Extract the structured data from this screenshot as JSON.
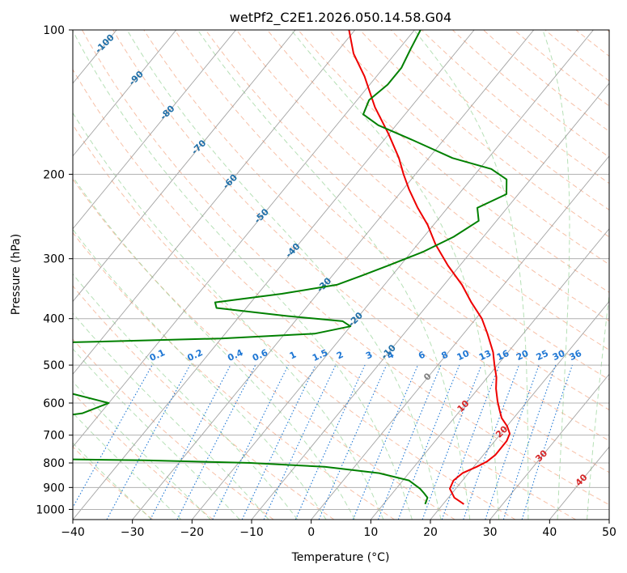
{
  "chart_data": {
    "type": "line",
    "title": "wetPf2_C2E1.2026.050.14.58.G04",
    "xlabel": "Temperature (°C)",
    "ylabel": "Pressure (hPa)",
    "xlim": [
      -40,
      50
    ],
    "ylim": [
      1050,
      100
    ],
    "y_scale": "log",
    "skew": true,
    "grid": true,
    "x_ticks": [
      -40,
      -30,
      -20,
      -10,
      0,
      10,
      20,
      30,
      40,
      50
    ],
    "y_ticks": [
      100,
      200,
      300,
      400,
      500,
      600,
      700,
      800,
      900,
      1000
    ],
    "series": [
      {
        "key": "temperature",
        "color": "#ee0000",
        "points": [
          [
            23.5,
            975
          ],
          [
            21,
            945
          ],
          [
            19,
            905
          ],
          [
            18.5,
            870
          ],
          [
            19,
            840
          ],
          [
            20.5,
            815
          ],
          [
            21.5,
            795
          ],
          [
            22,
            770
          ],
          [
            22,
            745
          ],
          [
            22,
            720
          ],
          [
            21.5,
            695
          ],
          [
            20,
            670
          ],
          [
            18,
            645
          ],
          [
            16.5,
            620
          ],
          [
            15,
            595
          ],
          [
            13,
            560
          ],
          [
            11.5,
            530
          ],
          [
            9.5,
            500
          ],
          [
            7.5,
            470
          ],
          [
            4,
            430
          ],
          [
            1,
            400
          ],
          [
            -3,
            370
          ],
          [
            -7,
            340
          ],
          [
            -12,
            310
          ],
          [
            -17,
            280
          ],
          [
            -21,
            255
          ],
          [
            -25,
            235
          ],
          [
            -29,
            215
          ],
          [
            -32,
            200
          ],
          [
            -35,
            185
          ],
          [
            -40,
            165
          ],
          [
            -46,
            145
          ],
          [
            -52,
            125
          ],
          [
            -57,
            112
          ],
          [
            -61,
            100
          ]
        ]
      },
      {
        "key": "dewpoint",
        "color": "#008000",
        "points": [
          [
            17,
            975
          ],
          [
            16.5,
            945
          ],
          [
            15.3,
            925
          ],
          [
            14,
            905
          ],
          [
            11,
            870
          ],
          [
            5,
            840
          ],
          [
            -5,
            815
          ],
          [
            -18,
            800
          ],
          [
            -36,
            790
          ],
          [
            -52,
            785
          ],
          [
            -60,
            780
          ],
          [
            -62,
            770
          ],
          [
            -63,
            760
          ],
          [
            -62,
            740
          ],
          [
            -65,
            725
          ],
          [
            -70,
            710
          ],
          [
            -80,
            700
          ],
          [
            -85,
            695
          ],
          [
            -80,
            690
          ],
          [
            -74,
            685
          ],
          [
            -73,
            670
          ],
          [
            -68,
            660
          ],
          [
            -60,
            650
          ],
          [
            -53,
            630
          ],
          [
            -50,
            600
          ],
          [
            -57,
            575
          ],
          [
            -68,
            545
          ],
          [
            -76,
            530
          ],
          [
            -73,
            510
          ],
          [
            -73,
            490
          ],
          [
            -78,
            470
          ],
          [
            -90,
            455
          ],
          [
            -70,
            450
          ],
          [
            -40,
            440
          ],
          [
            -25,
            430
          ],
          [
            -20,
            415
          ],
          [
            -22,
            405
          ],
          [
            -32,
            395
          ],
          [
            -45,
            380
          ],
          [
            -46,
            370
          ],
          [
            -36,
            355
          ],
          [
            -28,
            340
          ],
          [
            -25,
            325
          ],
          [
            -22,
            310
          ],
          [
            -18,
            290
          ],
          [
            -15,
            270
          ],
          [
            -13,
            250
          ],
          [
            -15,
            235
          ],
          [
            -12,
            220
          ],
          [
            -14,
            205
          ],
          [
            -18,
            195
          ],
          [
            -26,
            185
          ],
          [
            -35,
            170
          ],
          [
            -43,
            158
          ],
          [
            -47,
            150
          ],
          [
            -48,
            140
          ],
          [
            -47,
            130
          ],
          [
            -47,
            120
          ],
          [
            -48,
            110
          ],
          [
            -49,
            100
          ]
        ]
      }
    ],
    "mixing_ratio_labels": [
      "0.1",
      "0.2",
      "0.4",
      "0.6",
      "1",
      "1.5",
      "2",
      "3",
      "4",
      "6",
      "8",
      "10",
      "13",
      "16",
      "20",
      "25",
      "30",
      "36"
    ],
    "mixing_ratio_values": [
      0.1,
      0.2,
      0.4,
      0.6,
      1,
      1.5,
      2,
      3,
      4,
      6,
      8,
      10,
      13,
      16,
      20,
      25,
      30,
      36
    ],
    "dry_adiabat_labels": [
      "-100",
      "-90",
      "-80",
      "-70",
      "-60",
      "-50",
      "-40",
      "-30",
      "-20",
      "-10"
    ],
    "dry_adiabat_values": [
      -100,
      -90,
      -80,
      -70,
      -60,
      -50,
      -40,
      -30,
      -20,
      -10
    ],
    "moist_adiabat_labels": [
      "0",
      "10",
      "20",
      "30",
      "40"
    ],
    "moist_adiabat_values": [
      0,
      10,
      20,
      30,
      40
    ],
    "colors": {
      "temperature": "#ee0000",
      "dewpoint": "#008000",
      "grid": "#b0b0b0",
      "isotherm": "#8c8c8c",
      "dry_adiabat": "#f4a582",
      "moist_adiabat": "#8fcf8f",
      "mixing_ratio": "#1f77d4",
      "dry_label": "#1f6fa8",
      "moist_label_cold": "#808080",
      "moist_label_warm": "#d62728"
    }
  }
}
